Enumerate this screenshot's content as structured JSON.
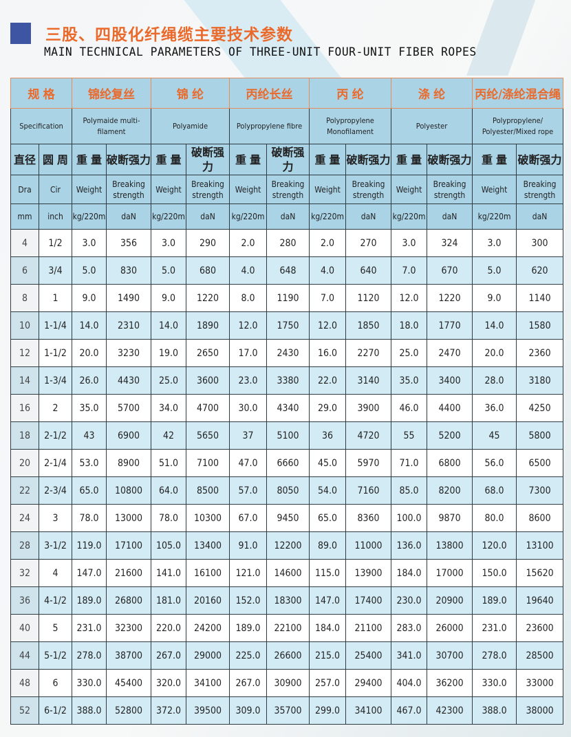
{
  "title_cn": "三股、四股化纤绳缆主要技术参数",
  "title_en": "MAIN TECHNICAL PARAMETERS OF THREE-UNIT FOUR-UNIT FIBER ROPES",
  "colors": {
    "title_orange": "#ea6a2c",
    "header_blue": "#aad3e6",
    "row_blue": "#d3ebf4",
    "square_blue": "#3d55a3"
  },
  "header": {
    "spec_cn": "规 格",
    "spec_en": "Specification",
    "materials": [
      {
        "cn": "锦纶复丝",
        "en": "Polymaide multi-filament"
      },
      {
        "cn": "锦 纶",
        "en": "Polyamide"
      },
      {
        "cn": "丙纶长丝",
        "en": "Polypropylene fibre"
      },
      {
        "cn": "丙 纶",
        "en": "Polypropylene Monofilament"
      },
      {
        "cn": "涤 纶",
        "en": "Polyester"
      },
      {
        "cn": "丙纶/涤纶混合绳",
        "en": "Polypropylene/ Polyester/Mixed rope"
      }
    ],
    "dia_cn": "直径",
    "cir_cn": "圆 周",
    "weight_cn": "重 量",
    "break_cn": "破断强力",
    "dia_en": "Dra",
    "cir_en": "Cir",
    "weight_en": "Weight",
    "break_en": "Breaking strength",
    "dia_unit": "mm",
    "cir_unit": "inch",
    "weight_unit": "kg/220m",
    "break_unit": "daN"
  },
  "rows": [
    [
      "4",
      "1/2",
      "3.0",
      "356",
      "3.0",
      "290",
      "2.0",
      "280",
      "2.0",
      "270",
      "3.0",
      "324",
      "3.0",
      "300"
    ],
    [
      "6",
      "3/4",
      "5.0",
      "830",
      "5.0",
      "680",
      "4.0",
      "648",
      "4.0",
      "640",
      "7.0",
      "670",
      "5.0",
      "620"
    ],
    [
      "8",
      "1",
      "9.0",
      "1490",
      "9.0",
      "1220",
      "8.0",
      "1190",
      "7.0",
      "1120",
      "12.0",
      "1220",
      "9.0",
      "1140"
    ],
    [
      "10",
      "1-1/4",
      "14.0",
      "2310",
      "14.0",
      "1890",
      "12.0",
      "1750",
      "12.0",
      "1850",
      "18.0",
      "1770",
      "14.0",
      "1580"
    ],
    [
      "12",
      "1-1/2",
      "20.0",
      "3230",
      "19.0",
      "2650",
      "17.0",
      "2430",
      "16.0",
      "2270",
      "25.0",
      "2470",
      "20.0",
      "2360"
    ],
    [
      "14",
      "1-3/4",
      "26.0",
      "4430",
      "25.0",
      "3600",
      "23.0",
      "3380",
      "22.0",
      "3140",
      "35.0",
      "3400",
      "28.0",
      "3180"
    ],
    [
      "16",
      "2",
      "35.0",
      "5700",
      "34.0",
      "4700",
      "30.0",
      "4340",
      "29.0",
      "3900",
      "46.0",
      "4400",
      "36.0",
      "4250"
    ],
    [
      "18",
      "2-1/2",
      "43",
      "6900",
      "42",
      "5650",
      "37",
      "5100",
      "36",
      "4720",
      "55",
      "5200",
      "45",
      "5800"
    ],
    [
      "20",
      "2-1/4",
      "53.0",
      "8900",
      "51.0",
      "7100",
      "47.0",
      "6660",
      "45.0",
      "5970",
      "71.0",
      "6800",
      "56.0",
      "6500"
    ],
    [
      "22",
      "2-3/4",
      "65.0",
      "10800",
      "64.0",
      "8500",
      "57.0",
      "8050",
      "54.0",
      "7160",
      "85.0",
      "8200",
      "68.0",
      "7300"
    ],
    [
      "24",
      "3",
      "78.0",
      "13000",
      "78.0",
      "10300",
      "67.0",
      "9450",
      "65.0",
      "8360",
      "100.0",
      "9870",
      "80.0",
      "8600"
    ],
    [
      "28",
      "3-1/2",
      "119.0",
      "17100",
      "105.0",
      "13400",
      "91.0",
      "12200",
      "89.0",
      "11000",
      "136.0",
      "13800",
      "120.0",
      "13100"
    ],
    [
      "32",
      "4",
      "147.0",
      "21600",
      "141.0",
      "16100",
      "121.0",
      "14600",
      "115.0",
      "13900",
      "184.0",
      "17000",
      "150.0",
      "15620"
    ],
    [
      "36",
      "4-1/2",
      "189.0",
      "26800",
      "181.0",
      "20160",
      "152.0",
      "18300",
      "147.0",
      "17400",
      "230.0",
      "20900",
      "189.0",
      "19640"
    ],
    [
      "40",
      "5",
      "231.0",
      "32300",
      "220.0",
      "24200",
      "189.0",
      "22100",
      "184.0",
      "21100",
      "283.0",
      "26000",
      "231.0",
      "23600"
    ],
    [
      "44",
      "5-1/2",
      "278.0",
      "38700",
      "267.0",
      "29000",
      "225.0",
      "26600",
      "215.0",
      "25400",
      "341.0",
      "30700",
      "278.0",
      "28500"
    ],
    [
      "48",
      "6",
      "330.0",
      "45400",
      "320.0",
      "34100",
      "267.0",
      "30900",
      "257.0",
      "29400",
      "404.0",
      "36200",
      "330.0",
      "33000"
    ],
    [
      "52",
      "6-1/2",
      "388.0",
      "52800",
      "372.0",
      "39500",
      "309.0",
      "35700",
      "299.0",
      "34100",
      "467.0",
      "42300",
      "388.0",
      "38000"
    ]
  ]
}
